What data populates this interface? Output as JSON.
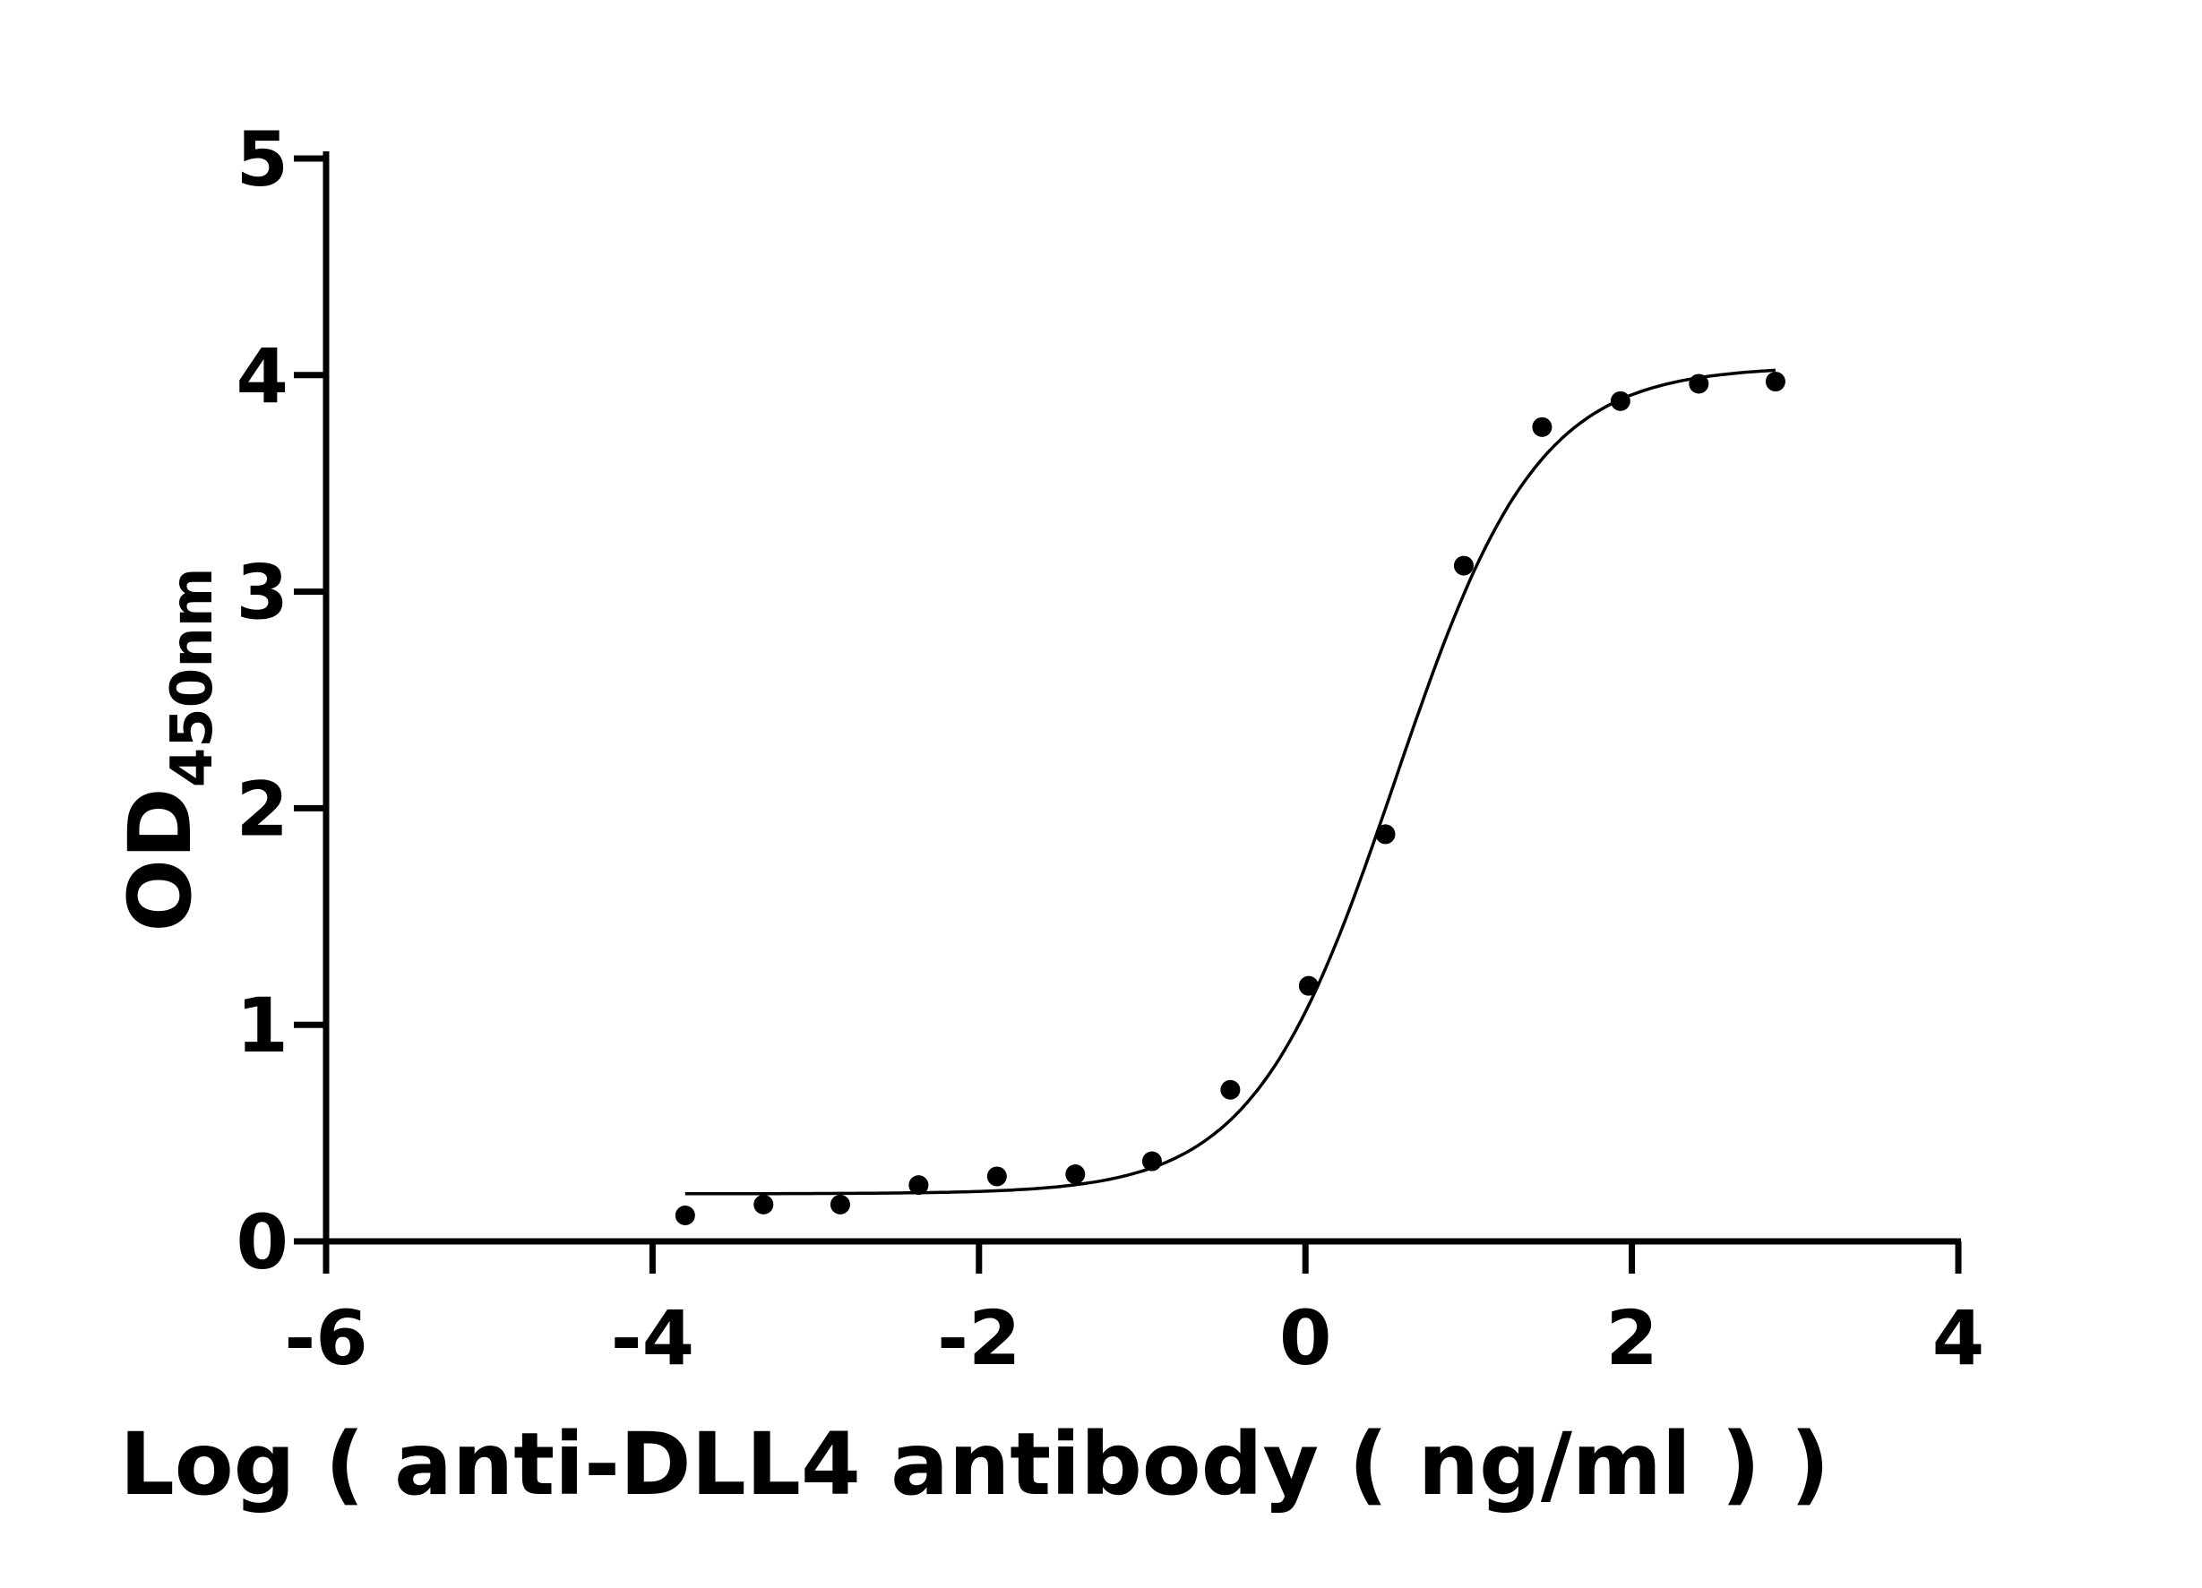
{
  "chart_data": {
    "type": "scatter",
    "xlabel": "Log ( anti-DLL4 antibody ( ng/ml )    )",
    "ylabel_main": "OD",
    "ylabel_sub": "450nm",
    "xlim": [
      -6,
      4
    ],
    "ylim": [
      0,
      5
    ],
    "xticks": [
      -6,
      -4,
      -2,
      0,
      2,
      4
    ],
    "yticks": [
      0,
      1,
      2,
      3,
      4,
      5
    ],
    "xtick_labels": [
      "-6",
      "-4",
      "-2",
      "0",
      "2",
      "4"
    ],
    "ytick_labels": [
      "0",
      "1",
      "2",
      "3",
      "4",
      "5"
    ],
    "grid": false,
    "legend": "none",
    "points": [
      {
        "x": -3.8,
        "y": 0.12
      },
      {
        "x": -3.32,
        "y": 0.17
      },
      {
        "x": -2.85,
        "y": 0.17
      },
      {
        "x": -2.37,
        "y": 0.26
      },
      {
        "x": -1.89,
        "y": 0.3
      },
      {
        "x": -1.41,
        "y": 0.31
      },
      {
        "x": -0.94,
        "y": 0.37
      },
      {
        "x": -0.46,
        "y": 0.7
      },
      {
        "x": 0.02,
        "y": 1.18
      },
      {
        "x": 0.49,
        "y": 1.88
      },
      {
        "x": 0.97,
        "y": 3.12
      },
      {
        "x": 1.45,
        "y": 3.76
      },
      {
        "x": 1.93,
        "y": 3.88
      },
      {
        "x": 2.41,
        "y": 3.96
      },
      {
        "x": 2.88,
        "y": 3.97
      }
    ],
    "fit": {
      "model": "four-parameter logistic",
      "bottom": 0.22,
      "top": 4.04,
      "log_ec50": 0.55,
      "hill_slope": 1.0,
      "x_range": [
        -3.8,
        2.88
      ]
    },
    "colors": {
      "ink": "#000000",
      "background": "#ffffff"
    }
  }
}
